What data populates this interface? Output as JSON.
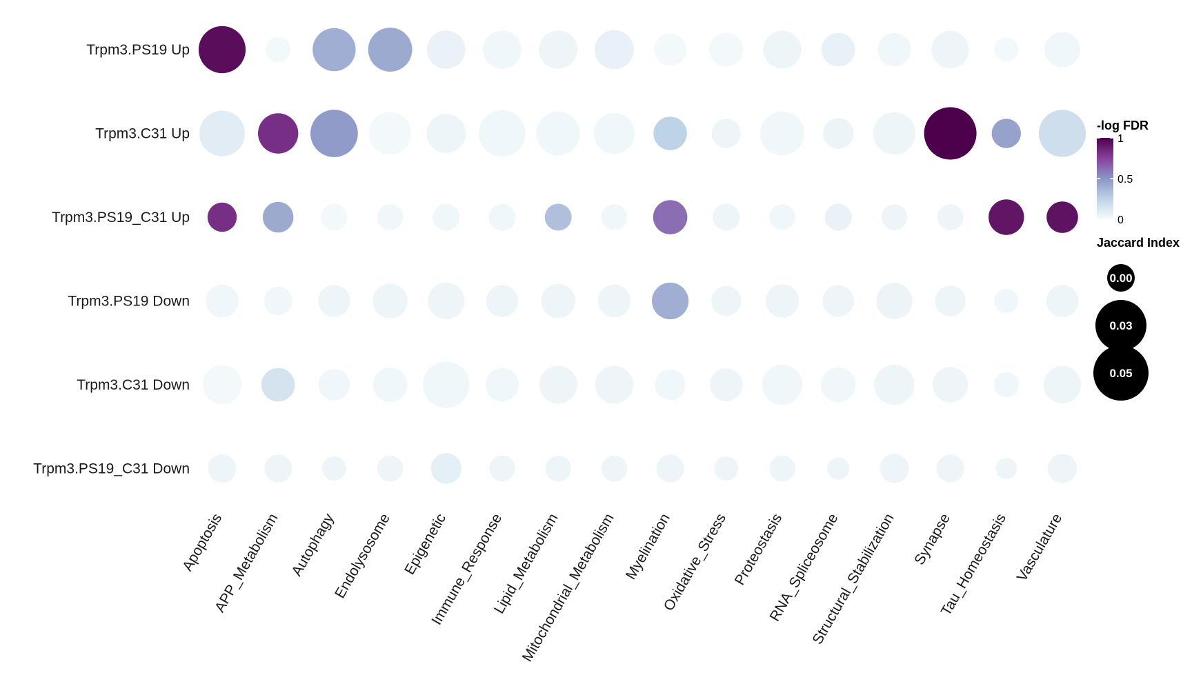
{
  "chart_data": {
    "type": "dot-plot",
    "rows": [
      "Trpm3.PS19 Up",
      "Trpm3.C31 Up",
      "Trpm3.PS19_C31 Up",
      "Trpm3.PS19 Down",
      "Trpm3.C31 Down",
      "Trpm3.PS19_C31 Down"
    ],
    "columns": [
      "Apoptosis",
      "APP_Metabolism",
      "Autophagy",
      "Endolysosome",
      "Epigenetic",
      "Immune_Response",
      "Lipid_Metabolism",
      "Mitochondrial_Metabolism",
      "Myelination",
      "Oxidative_Stress",
      "Proteostasis",
      "RNA_Spliceosome",
      "Structural_Stabilization",
      "Synapse",
      "Tau_Homeostasis",
      "Vasculature"
    ],
    "color_metric": "-log FDR",
    "size_metric": "Jaccard Index",
    "color_scale": {
      "min": 0,
      "max": 1,
      "ticks": [
        "0",
        "0.5",
        "1"
      ],
      "colors": [
        "#f7fcfd",
        "#bfd3e6",
        "#8c96c6",
        "#88419d",
        "#4d004b"
      ]
    },
    "size_scale": {
      "min": 0,
      "max": 0.05,
      "ticks": [
        "0.00",
        "0.03",
        "0.05"
      ]
    },
    "jaccard": [
      [
        0.049,
        0.014,
        0.041,
        0.043,
        0.033,
        0.033,
        0.033,
        0.034,
        0.023,
        0.026,
        0.032,
        0.025,
        0.025,
        0.031,
        0.013,
        0.028
      ],
      [
        0.046,
        0.036,
        0.05,
        0.04,
        0.034,
        0.048,
        0.043,
        0.037,
        0.025,
        0.019,
        0.043,
        0.021,
        0.04,
        0.061,
        0.019,
        0.049
      ],
      [
        0.019,
        0.021,
        0.016,
        0.015,
        0.016,
        0.016,
        0.016,
        0.015,
        0.026,
        0.016,
        0.015,
        0.016,
        0.015,
        0.015,
        0.028,
        0.022
      ],
      [
        0.024,
        0.018,
        0.023,
        0.027,
        0.03,
        0.023,
        0.026,
        0.024,
        0.03,
        0.02,
        0.025,
        0.022,
        0.029,
        0.021,
        0.013,
        0.023
      ],
      [
        0.034,
        0.025,
        0.022,
        0.026,
        0.048,
        0.025,
        0.032,
        0.032,
        0.021,
        0.024,
        0.036,
        0.027,
        0.036,
        0.028,
        0.014,
        0.031
      ],
      [
        0.018,
        0.017,
        0.013,
        0.015,
        0.021,
        0.015,
        0.015,
        0.015,
        0.017,
        0.013,
        0.015,
        0.011,
        0.019,
        0.017,
        0.01,
        0.019
      ]
    ],
    "neglog_fdr": [
      [
        0.95,
        0.02,
        0.4,
        0.42,
        0.06,
        0.03,
        0.04,
        0.07,
        0.02,
        0.02,
        0.04,
        0.07,
        0.03,
        0.04,
        0.02,
        0.03
      ],
      [
        0.1,
        0.82,
        0.48,
        0.02,
        0.04,
        0.03,
        0.03,
        0.03,
        0.25,
        0.04,
        0.03,
        0.05,
        0.04,
        1.0,
        0.45,
        0.18
      ],
      [
        0.82,
        0.42,
        0.02,
        0.03,
        0.03,
        0.03,
        0.33,
        0.03,
        0.62,
        0.04,
        0.03,
        0.06,
        0.04,
        0.04,
        0.92,
        0.93
      ],
      [
        0.03,
        0.03,
        0.04,
        0.04,
        0.04,
        0.04,
        0.04,
        0.04,
        0.4,
        0.04,
        0.04,
        0.04,
        0.05,
        0.04,
        0.03,
        0.04
      ],
      [
        0.02,
        0.15,
        0.03,
        0.03,
        0.03,
        0.03,
        0.04,
        0.04,
        0.03,
        0.04,
        0.03,
        0.03,
        0.04,
        0.04,
        0.03,
        0.04
      ],
      [
        0.04,
        0.04,
        0.04,
        0.04,
        0.08,
        0.04,
        0.04,
        0.04,
        0.04,
        0.04,
        0.04,
        0.04,
        0.04,
        0.04,
        0.04,
        0.04
      ]
    ]
  }
}
